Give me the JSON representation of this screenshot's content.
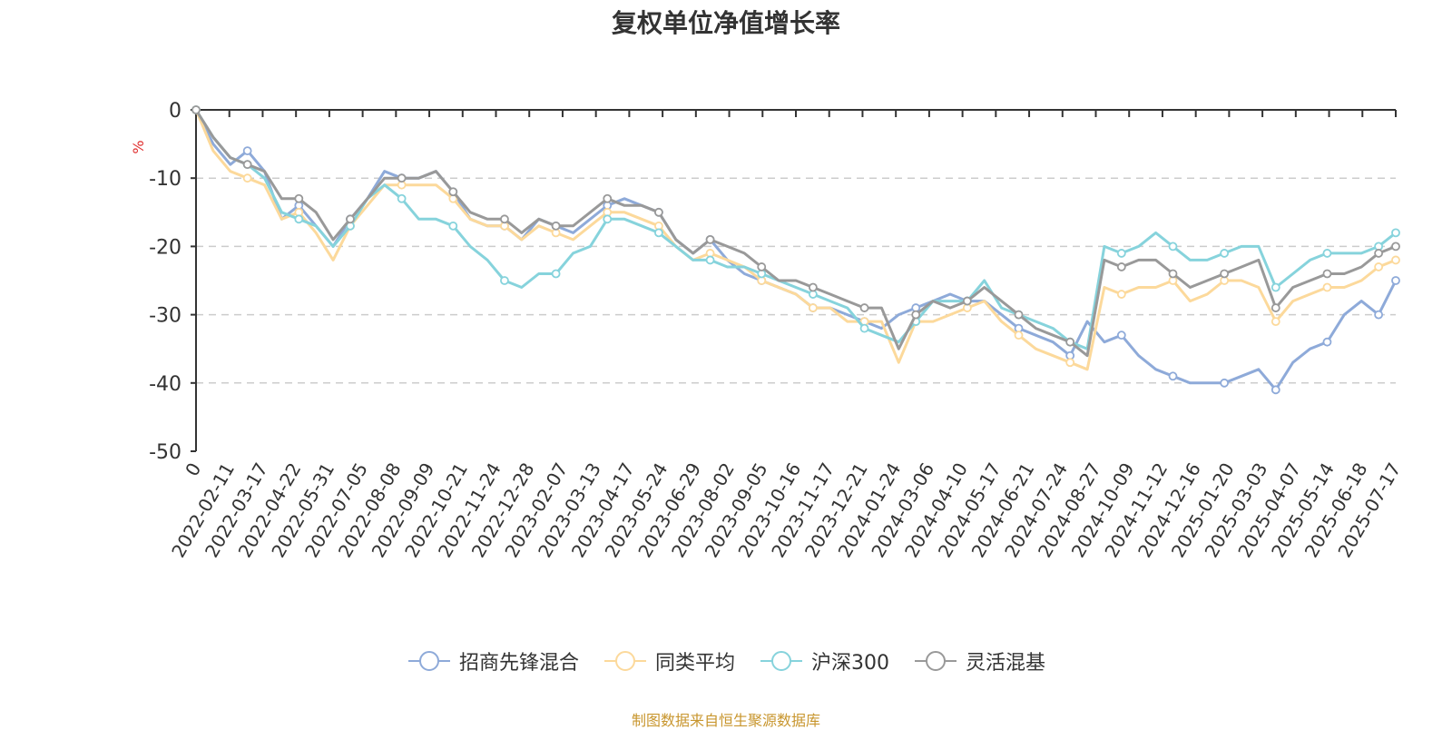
{
  "page": {
    "title": "复权单位净值增长率",
    "source_note": "制图数据来自恒生聚源数据库"
  },
  "chart_data": {
    "type": "line",
    "title": "复权单位净值增长率",
    "ylabel": "%",
    "ylim": [
      -50,
      0
    ],
    "yticks": [
      0,
      -10,
      -20,
      -30,
      -40,
      -50
    ],
    "grid": "horizontal dashed",
    "legend_position": "bottom-center",
    "x_tick_labels": [
      "0",
      "2022-02-11",
      "2022-03-17",
      "2022-04-22",
      "2022-05-31",
      "2022-07-05",
      "2022-08-08",
      "2022-09-09",
      "2022-10-21",
      "2022-11-24",
      "2022-12-28",
      "2023-02-07",
      "2023-03-13",
      "2023-04-17",
      "2023-05-24",
      "2023-06-29",
      "2023-08-02",
      "2023-09-05",
      "2023-10-16",
      "2023-11-17",
      "2023-12-21",
      "2024-01-24",
      "2024-03-06",
      "2024-04-10",
      "2024-05-17",
      "2024-06-21",
      "2024-07-24",
      "2024-08-27",
      "2024-10-09",
      "2024-11-12",
      "2024-12-16",
      "2025-01-20",
      "2025-03-03",
      "2025-04-07",
      "2025-05-14",
      "2025-06-18",
      "2025-07-17"
    ],
    "series": [
      {
        "name": "招商先锋混合",
        "color": "#8eaad9",
        "values": [
          0,
          -5,
          -8,
          -6,
          -9,
          -16,
          -14,
          -17,
          -20,
          -16,
          -13,
          -9,
          -10,
          -10,
          -9,
          -12,
          -16,
          -17,
          -17,
          -19,
          -16,
          -17,
          -18,
          -16,
          -14,
          -13,
          -14,
          -15,
          -19,
          -21,
          -19,
          -22,
          -24,
          -25,
          -26,
          -27,
          -29,
          -29,
          -30,
          -31,
          -32,
          -30,
          -29,
          -28,
          -27,
          -28,
          -28,
          -30,
          -32,
          -33,
          -34,
          -36,
          -31,
          -34,
          -33,
          -36,
          -38,
          -39,
          -40,
          -40,
          -40,
          -39,
          -38,
          -41,
          -37,
          -35,
          -34,
          -30,
          -28,
          -30,
          -25
        ]
      },
      {
        "name": "同类平均",
        "color": "#fcd99b",
        "values": [
          0,
          -6,
          -9,
          -10,
          -11,
          -16,
          -15,
          -18,
          -22,
          -17,
          -14,
          -11,
          -11,
          -11,
          -11,
          -13,
          -16,
          -17,
          -17,
          -19,
          -17,
          -18,
          -19,
          -17,
          -15,
          -15,
          -16,
          -17,
          -20,
          -22,
          -21,
          -22,
          -23,
          -25,
          -26,
          -27,
          -29,
          -29,
          -31,
          -31,
          -31,
          -37,
          -31,
          -31,
          -30,
          -29,
          -28,
          -31,
          -33,
          -35,
          -36,
          -37,
          -38,
          -26,
          -27,
          -26,
          -26,
          -25,
          -28,
          -27,
          -25,
          -25,
          -26,
          -31,
          -28,
          -27,
          -26,
          -26,
          -25,
          -23,
          -22
        ]
      },
      {
        "name": "沪深300",
        "color": "#86d3dc",
        "values": [
          0,
          -4,
          -7,
          -8,
          -10,
          -15,
          -16,
          -17,
          -20,
          -17,
          -13,
          -11,
          -13,
          -16,
          -16,
          -17,
          -20,
          -22,
          -25,
          -26,
          -24,
          -24,
          -21,
          -20,
          -16,
          -16,
          -17,
          -18,
          -20,
          -22,
          -22,
          -23,
          -23,
          -24,
          -25,
          -26,
          -27,
          -28,
          -29,
          -32,
          -33,
          -34,
          -31,
          -28,
          -28,
          -28,
          -25,
          -29,
          -30,
          -31,
          -32,
          -34,
          -35,
          -20,
          -21,
          -20,
          -18,
          -20,
          -22,
          -22,
          -21,
          -20,
          -20,
          -26,
          -24,
          -22,
          -21,
          -21,
          -21,
          -20,
          -18
        ]
      },
      {
        "name": "灵活混基",
        "color": "#999999",
        "values": [
          0,
          -4,
          -7,
          -8,
          -9,
          -13,
          -13,
          -15,
          -19,
          -16,
          -13,
          -10,
          -10,
          -10,
          -9,
          -12,
          -15,
          -16,
          -16,
          -18,
          -16,
          -17,
          -17,
          -15,
          -13,
          -14,
          -14,
          -15,
          -19,
          -21,
          -19,
          -20,
          -21,
          -23,
          -25,
          -25,
          -26,
          -27,
          -28,
          -29,
          -29,
          -35,
          -30,
          -28,
          -29,
          -28,
          -26,
          -28,
          -30,
          -32,
          -33,
          -34,
          -36,
          -22,
          -23,
          -22,
          -22,
          -24,
          -26,
          -25,
          -24,
          -23,
          -22,
          -29,
          -26,
          -25,
          -24,
          -24,
          -23,
          -21,
          -20
        ]
      }
    ]
  }
}
